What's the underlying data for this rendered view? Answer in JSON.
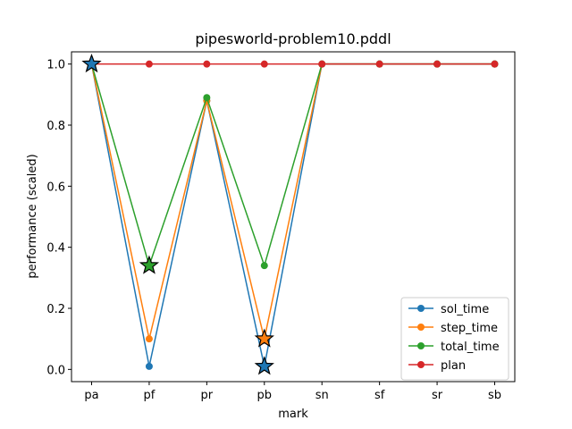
{
  "chart_data": {
    "type": "line",
    "title": "pipesworld-problem10.pddl",
    "xlabel": "mark",
    "ylabel": "performance (scaled)",
    "categories": [
      "pa",
      "pf",
      "pr",
      "pb",
      "sn",
      "sf",
      "sr",
      "sb"
    ],
    "ylim": [
      -0.04,
      1.04
    ],
    "yticks": [
      0.0,
      0.2,
      0.4,
      0.6,
      0.8,
      1.0
    ],
    "ytick_labels": [
      "0.0",
      "0.2",
      "0.4",
      "0.6",
      "0.8",
      "1.0"
    ],
    "grid": false,
    "legend_position": "lower-right",
    "series": [
      {
        "name": "sol_time",
        "color": "#1f77b4",
        "values": [
          1.0,
          0.01,
          0.88,
          0.01,
          1.0,
          1.0,
          1.0,
          1.0
        ]
      },
      {
        "name": "step_time",
        "color": "#ff7f0e",
        "values": [
          1.0,
          0.1,
          0.88,
          0.1,
          1.0,
          1.0,
          1.0,
          1.0
        ]
      },
      {
        "name": "total_time",
        "color": "#2ca02c",
        "values": [
          1.0,
          0.34,
          0.89,
          0.34,
          1.0,
          1.0,
          1.0,
          1.0
        ]
      },
      {
        "name": "plan",
        "color": "#d62728",
        "values": [
          1.0,
          1.0,
          1.0,
          1.0,
          1.0,
          1.0,
          1.0,
          1.0
        ]
      }
    ],
    "star_markers": [
      {
        "series": "sol_time",
        "category": "pa",
        "value": 1.0
      },
      {
        "series": "total_time",
        "category": "pf",
        "value": 0.34
      },
      {
        "series": "step_time",
        "category": "pb",
        "value": 0.1
      },
      {
        "series": "sol_time",
        "category": "pb",
        "value": 0.01
      }
    ]
  }
}
